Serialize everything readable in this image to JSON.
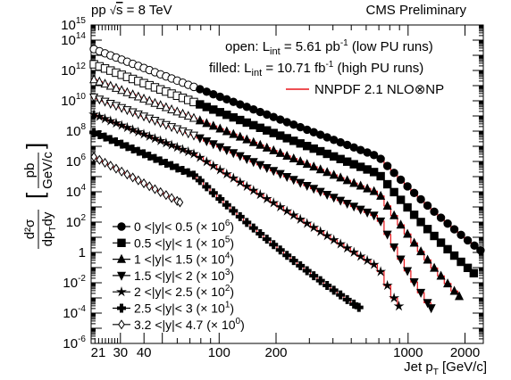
{
  "header": {
    "left_prefix": "pp ",
    "left_sqrt": "√",
    "left_energy_s": "s",
    "left_energy_value": " = 8 TeV",
    "right_label": "CMS Preliminary"
  },
  "annotations": {
    "open_prefix": "open: L",
    "open_sub": "int",
    "open_value": " = 5.61 pb",
    "open_exp": "-1",
    "open_suffix": " (low PU runs)",
    "filled_prefix": "filled: L",
    "filled_sub": "int",
    "filled_value": " = 10.71 fb",
    "filled_exp": "-1",
    "filled_suffix": " (high PU runs)",
    "theory_label": "NNPDF 2.1 NLO⊗NP"
  },
  "chart_data": {
    "type": "scatter",
    "xscale": "log",
    "yscale": "log",
    "xlim": [
      21,
      2500
    ],
    "ylim": [
      1e-06,
      1000000000000000.0
    ],
    "xlabel_main": "Jet p",
    "xlabel_sub": "T",
    "xlabel_unit": " [GeV/c]",
    "ylabel_num": "d²σ",
    "ylabel_den_1": "dp",
    "ylabel_den_sub": "T",
    "ylabel_den_2": "dy",
    "ylabel_unit_num": "pb",
    "ylabel_unit_den": "GeV/c",
    "x_major_ticks": [
      {
        "value": 21,
        "label": "21"
      },
      {
        "value": 30,
        "label": "30"
      },
      {
        "value": 40,
        "label": "40"
      },
      {
        "value": 100,
        "label": "100"
      },
      {
        "value": 200,
        "label": "200"
      },
      {
        "value": 1000,
        "label": "1000"
      },
      {
        "value": 2000,
        "label": "2000"
      }
    ],
    "y_ticks": [
      {
        "value": 1000000000000000.0,
        "base": "10",
        "exp": "15"
      },
      {
        "value": 100000000000000.0,
        "base": "10",
        "exp": "14"
      },
      {
        "value": 1000000000000.0,
        "base": "10",
        "exp": "12"
      },
      {
        "value": 10000000000.0,
        "base": "10",
        "exp": "10"
      },
      {
        "value": 100000000.0,
        "base": "10",
        "exp": "8"
      },
      {
        "value": 1000000.0,
        "base": "10",
        "exp": "6"
      },
      {
        "value": 10000.0,
        "base": "10",
        "exp": "4"
      },
      {
        "value": 100.0,
        "base": "10",
        "exp": "2"
      },
      {
        "value": 1,
        "base": "1",
        "exp": ""
      },
      {
        "value": 0.01,
        "base": "10",
        "exp": "-2"
      },
      {
        "value": 0.0001,
        "base": "10",
        "exp": "-4"
      },
      {
        "value": 1e-06,
        "base": "10",
        "exp": "-6"
      }
    ],
    "series": [
      {
        "name": "0 <|y|< 0.5 (× 10⁶)",
        "legend_main": "0 <|y|< 0.5 (× 10",
        "legend_exp": "6",
        "marker": "circle",
        "lowpu_range": [
          21,
          74
        ],
        "highpu_range": [
          74,
          2500
        ],
        "y_at_21": 30000000000000.0,
        "y_at_74": 80000000000.0,
        "y_at_700": 2000000.0,
        "y_end": 1.0
      },
      {
        "name": "0.5 <|y|< 1 (× 10⁵)",
        "legend_main": "0.5 <|y|< 1 (× 10",
        "legend_exp": "5",
        "marker": "square",
        "lowpu_range": [
          21,
          74
        ],
        "highpu_range": [
          74,
          2300
        ],
        "y_at_21": 3000000000000.0,
        "y_at_74": 8000000000.0,
        "y_at_700": 150000.0,
        "y_end": 0.03
      },
      {
        "name": "1 <|y|< 1.5 (× 10⁴)",
        "legend_main": "1 <|y|< 1.5 (× 10",
        "legend_exp": "4",
        "marker": "triangle-up",
        "lowpu_range": [
          21,
          74
        ],
        "highpu_range": [
          74,
          1900
        ],
        "y_at_21": 300000000000.0,
        "y_at_74": 700000000.0,
        "y_at_700": 8000.0,
        "y_end": 0.001
      },
      {
        "name": "1.5 <|y|< 2 (× 10³)",
        "legend_main": "1.5 <|y|< 2 (× 10",
        "legend_exp": "3",
        "marker": "triangle-down",
        "lowpu_range": [
          21,
          74
        ],
        "highpu_range": [
          74,
          1330
        ],
        "y_at_21": 20000000000.0,
        "y_at_74": 50000000.0,
        "y_at_700": 200.0,
        "y_end": 0.0002
      },
      {
        "name": "2 <|y|< 2.5 (× 10²)",
        "legend_main": "2 <|y|< 2.5 (× 10",
        "legend_exp": "2",
        "marker": "star",
        "lowpu_range": [
          21,
          74
        ],
        "highpu_range": [
          74,
          910
        ],
        "y_at_21": 1500000000.0,
        "y_at_74": 3000000.0,
        "y_at_700": 0.1,
        "y_end": 0.0002
      },
      {
        "name": "2.5 <|y|< 3 (× 10¹)",
        "legend_main": "2.5 <|y|< 3 (× 10",
        "legend_exp": "1",
        "marker": "cross",
        "lowpu_range": [
          21,
          74
        ],
        "highpu_range": [
          74,
          560
        ],
        "y_at_21": 100000000.0,
        "y_at_74": 120000.0,
        "y_end": 0.0002
      },
      {
        "name": "3.2 <|y|< 4.7 (× 10⁰)",
        "legend_main": "3.2 <|y|< 4.7 (× 10",
        "legend_exp": "0",
        "marker": "diamond-open",
        "lowpu_range": [
          21,
          62
        ],
        "highpu_range": [],
        "y_at_21": 2500000.0,
        "y_end": 2000.0
      }
    ],
    "theory_color": "#e8161b"
  }
}
